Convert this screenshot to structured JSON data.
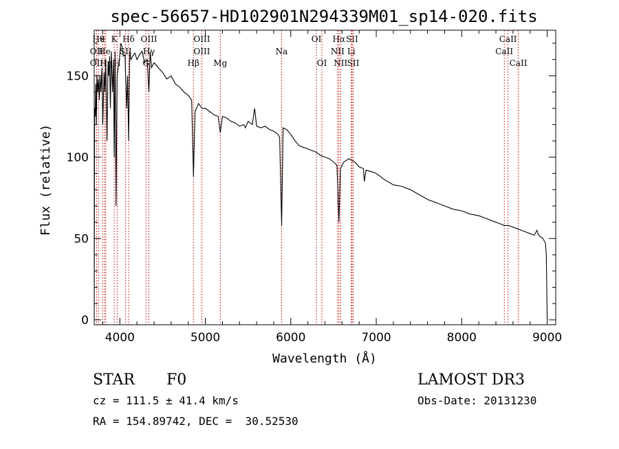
{
  "chart_data": {
    "type": "line",
    "title": "spec-56657-HD102901N294339M01_sp14-020.fits",
    "xlabel": "Wavelength (Å)",
    "ylabel": "Flux (relative)",
    "xlim": [
      3700,
      9100
    ],
    "ylim": [
      -3,
      178
    ],
    "x_ticks": [
      4000,
      5000,
      6000,
      7000,
      8000,
      9000
    ],
    "x_tick_labels": [
      "4000",
      "5000",
      "6000",
      "7000",
      "8000",
      "9000"
    ],
    "y_ticks": [
      0,
      50,
      100,
      150
    ],
    "y_tick_labels": [
      "0",
      "50",
      "100",
      "150"
    ],
    "series": [
      {
        "name": "flux",
        "x": [
          3700,
          3705,
          3712,
          3718,
          3725,
          3732,
          3740,
          3750,
          3760,
          3768,
          3778,
          3790,
          3800,
          3815,
          3825,
          3835,
          3850,
          3862,
          3870,
          3880,
          3889,
          3900,
          3915,
          3925,
          3934,
          3945,
          3955,
          3968,
          3980,
          3995,
          4010,
          4025,
          4040,
          4060,
          4080,
          4090,
          4102,
          4115,
          4130,
          4150,
          4175,
          4200,
          4230,
          4260,
          4290,
          4320,
          4340,
          4355,
          4370,
          4400,
          4450,
          4500,
          4550,
          4600,
          4650,
          4700,
          4750,
          4800,
          4840,
          4861,
          4880,
          4920,
          4960,
          5000,
          5050,
          5100,
          5150,
          5175,
          5200,
          5250,
          5300,
          5350,
          5400,
          5450,
          5470,
          5500,
          5550,
          5577,
          5600,
          5650,
          5700,
          5750,
          5800,
          5850,
          5870,
          5893,
          5910,
          5950,
          6000,
          6050,
          6100,
          6150,
          6200,
          6250,
          6300,
          6350,
          6400,
          6450,
          6500,
          6540,
          6563,
          6580,
          6620,
          6680,
          6750,
          6800,
          6850,
          6860,
          6880,
          6950,
          7000,
          7100,
          7200,
          7300,
          7400,
          7500,
          7600,
          7700,
          7800,
          7900,
          8000,
          8100,
          8200,
          8300,
          8400,
          8450,
          8500,
          8550,
          8600,
          8650,
          8700,
          8750,
          8800,
          8850,
          8880,
          8900,
          8950,
          8980,
          8990,
          9000
        ],
        "y": [
          0,
          130,
          125,
          145,
          120,
          150,
          140,
          148,
          135,
          150,
          140,
          155,
          120,
          152,
          140,
          160,
          110,
          158,
          150,
          162,
          130,
          165,
          140,
          160,
          100,
          165,
          70,
          150,
          155,
          160,
          170,
          168,
          162,
          163,
          130,
          150,
          110,
          165,
          160,
          162,
          164,
          160,
          163,
          165,
          158,
          160,
          140,
          165,
          155,
          158,
          155,
          152,
          148,
          150,
          145,
          143,
          140,
          138,
          135,
          88,
          128,
          133,
          130,
          130,
          128,
          126,
          125,
          115,
          125,
          124,
          122,
          121,
          119,
          120,
          118,
          122,
          120,
          130,
          119,
          118,
          119,
          117,
          116,
          114,
          112,
          58,
          118,
          117,
          114,
          110,
          107,
          106,
          105,
          104,
          103,
          101,
          100,
          99,
          97,
          95,
          60,
          93,
          97,
          99,
          97,
          94,
          93,
          85,
          92,
          91,
          90,
          86,
          83,
          82,
          80,
          77,
          74,
          72,
          70,
          68,
          67,
          65,
          64,
          62,
          60,
          59,
          58,
          58,
          57,
          56,
          55,
          54,
          53,
          52,
          55,
          52,
          50,
          47,
          40,
          0
        ]
      }
    ],
    "spectral_lines": [
      {
        "label": "Hθ",
        "x": 3750,
        "row": 1
      },
      {
        "label": "ε",
        "x": 3797,
        "row": 1
      },
      {
        "label": "K",
        "x": 3934,
        "row": 1
      },
      {
        "label": "Hδ",
        "x": 4102,
        "row": 1
      },
      {
        "label": "OIII",
        "x": 4340,
        "row": 1
      },
      {
        "label": "OIII",
        "x": 4959,
        "row": 1
      },
      {
        "label": "OI",
        "x": 6300,
        "row": 1
      },
      {
        "label": "Hα",
        "x": 6563,
        "row": 1
      },
      {
        "label": "SII",
        "x": 6717,
        "row": 1
      },
      {
        "label": "CaII",
        "x": 8542,
        "row": 1
      },
      {
        "label": "OII",
        "x": 3727,
        "row": 2
      },
      {
        "label": "He",
        "x": 3820,
        "row": 2
      },
      {
        "label": "SII",
        "x": 4068,
        "row": 2
      },
      {
        "label": "Hγ",
        "x": 4340,
        "row": 2
      },
      {
        "label": "OIII",
        "x": 4959,
        "row": 2
      },
      {
        "label": "Na",
        "x": 5893,
        "row": 2
      },
      {
        "label": "NII",
        "x": 6548,
        "row": 2
      },
      {
        "label": "Li",
        "x": 6708,
        "row": 2
      },
      {
        "label": "CaII",
        "x": 8498,
        "row": 2
      },
      {
        "label": "OII",
        "x": 3727,
        "row": 3
      },
      {
        "label": "Hη",
        "x": 3835,
        "row": 3
      },
      {
        "label": "H",
        "x": 3968,
        "row": 3
      },
      {
        "label": "G",
        "x": 4305,
        "row": 3
      },
      {
        "label": "Hβ",
        "x": 4861,
        "row": 3
      },
      {
        "label": "Mg",
        "x": 5175,
        "row": 3
      },
      {
        "label": "OI",
        "x": 6364,
        "row": 3
      },
      {
        "label": "NII",
        "x": 6583,
        "row": 3
      },
      {
        "label": "SII",
        "x": 6731,
        "row": 3
      },
      {
        "label": "CaII",
        "x": 8662,
        "row": 3
      }
    ]
  },
  "info": {
    "object_class": "STAR",
    "subclass": "F0",
    "survey": "LAMOST DR3",
    "cz": "cz = 111.5 ± 41.4 km/s",
    "obs_date": "Obs-Date: 20131230",
    "radec": "RA = 154.89742, DEC =  30.52530"
  },
  "colors": {
    "line_markers": "#cc0000",
    "spectrum": "#000000",
    "axes": "#000000"
  }
}
